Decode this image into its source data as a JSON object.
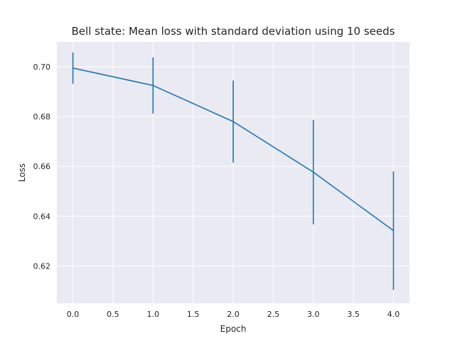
{
  "chart_data": {
    "type": "line",
    "title": "Bell state: Mean loss with standard deviation using 10 seeds",
    "xlabel": "Epoch",
    "ylabel": "Loss",
    "x": [
      0,
      1,
      2,
      3,
      4
    ],
    "series": [
      {
        "values": [
          0.6995,
          0.6925,
          0.678,
          0.6577,
          0.6342
        ],
        "error": [
          0.0063,
          0.0113,
          0.0165,
          0.021,
          0.0238
        ]
      }
    ],
    "xlim": [
      -0.2,
      4.2
    ],
    "ylim": [
      0.605,
      0.71
    ],
    "xticks": [
      0.0,
      0.5,
      1.0,
      1.5,
      2.0,
      2.5,
      3.0,
      3.5,
      4.0
    ],
    "xtick_labels": [
      "0.0",
      "0.5",
      "1.0",
      "1.5",
      "2.0",
      "2.5",
      "3.0",
      "3.5",
      "4.0"
    ],
    "yticks": [
      0.62,
      0.64,
      0.66,
      0.68,
      0.7
    ],
    "ytick_labels": [
      "0.62",
      "0.64",
      "0.66",
      "0.68",
      "0.70"
    ],
    "grid": true,
    "colors": {
      "background": "#eaeaf2",
      "grid": "#ffffff",
      "line": "#1f77b4",
      "text": "#262626"
    }
  }
}
